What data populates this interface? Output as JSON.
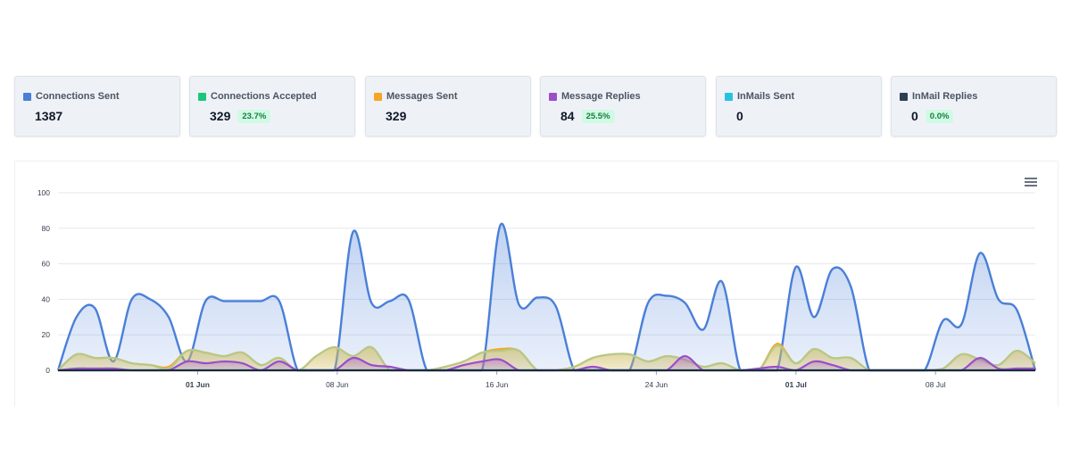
{
  "stats": [
    {
      "label": "Connections Sent",
      "value": "1387",
      "pct": null,
      "color": "#4a7fd8"
    },
    {
      "label": "Connections Accepted",
      "value": "329",
      "pct": "23.7%",
      "color": "#19c77b"
    },
    {
      "label": "Messages Sent",
      "value": "329",
      "pct": null,
      "color": "#f5a623"
    },
    {
      "label": "Message Replies",
      "value": "84",
      "pct": "25.5%",
      "color": "#9b4dca"
    },
    {
      "label": "InMails Sent",
      "value": "0",
      "pct": null,
      "color": "#27c2e0"
    },
    {
      "label": "InMail Replies",
      "value": "0",
      "pct": "0.0%",
      "color": "#2d3e55"
    }
  ],
  "chart_data": {
    "type": "area",
    "title": "",
    "xlabel": "",
    "ylabel": "",
    "ylim": [
      0,
      100
    ],
    "yticks": [
      0,
      20,
      40,
      60,
      80,
      100
    ],
    "x_start": "2024-05-25",
    "x_end": "2024-07-13",
    "xticks": [
      {
        "label": "01 Jun",
        "date": "2024-06-01",
        "bold": true
      },
      {
        "label": "08 Jun",
        "date": "2024-06-08",
        "bold": false
      },
      {
        "label": "16 Jun",
        "date": "2024-06-16",
        "bold": false
      },
      {
        "label": "24 Jun",
        "date": "2024-06-24",
        "bold": false
      },
      {
        "label": "01 Jul",
        "date": "2024-07-01",
        "bold": true
      },
      {
        "label": "08 Jul",
        "date": "2024-07-08",
        "bold": false
      }
    ],
    "series": [
      {
        "name": "Connections Sent",
        "color": "#4a7fd8",
        "fill": "#4a7fd8",
        "line_color": "#4a7fd8",
        "values": [
          0,
          30,
          35,
          5,
          40,
          40,
          30,
          5,
          39,
          39,
          39,
          39,
          39,
          0,
          0,
          0,
          78,
          38,
          39,
          40,
          0,
          0,
          0,
          0,
          82,
          37,
          41,
          36,
          0,
          0,
          0,
          0,
          38,
          42,
          38,
          23,
          50,
          0,
          0,
          0,
          58,
          30,
          57,
          47,
          0,
          0,
          0,
          0,
          28,
          26,
          66,
          40,
          34,
          0
        ]
      },
      {
        "name": "Connections Accepted",
        "color": "#19c77b",
        "fill": "#b5c98a",
        "line_color": "#b5c98a",
        "values": [
          0,
          9,
          7,
          7,
          4,
          3,
          1,
          11,
          10,
          8,
          10,
          3,
          7,
          0,
          8,
          13,
          8,
          13,
          0,
          0,
          0,
          2,
          5,
          10,
          11,
          11,
          0,
          0,
          2,
          7,
          9,
          9,
          5,
          8,
          6,
          2,
          4,
          0,
          0,
          14,
          4,
          12,
          7,
          7,
          0,
          0,
          0,
          0,
          1,
          9,
          6,
          3,
          11,
          4
        ]
      },
      {
        "name": "Messages Sent",
        "color": "#f5a623",
        "fill": "#f5a623",
        "line_color": "#f5a623",
        "values": [
          0,
          9,
          7,
          7,
          4,
          3,
          2,
          11,
          10,
          8,
          10,
          3,
          7,
          0,
          8,
          13,
          8,
          13,
          0,
          0,
          0,
          2,
          5,
          10,
          12,
          11,
          0,
          0,
          2,
          7,
          9,
          9,
          5,
          8,
          6,
          2,
          4,
          0,
          0,
          15,
          4,
          12,
          7,
          7,
          0,
          0,
          0,
          0,
          1,
          9,
          6,
          3,
          11,
          4
        ]
      },
      {
        "name": "Message Replies",
        "color": "#9b4dca",
        "fill": "#9b4dca",
        "line_color": "#9b4dca",
        "values": [
          0,
          1,
          1,
          1,
          0,
          0,
          0,
          5,
          4,
          5,
          4,
          0,
          5,
          0,
          0,
          0,
          7,
          3,
          2,
          0,
          0,
          0,
          3,
          5,
          6,
          0,
          0,
          0,
          0,
          2,
          0,
          0,
          0,
          0,
          8,
          0,
          0,
          0,
          1,
          2,
          0,
          5,
          3,
          0,
          0,
          0,
          0,
          0,
          0,
          0,
          7,
          1,
          1,
          1
        ]
      },
      {
        "name": "InMails Sent",
        "color": "#27c2e0",
        "fill": "#27c2e0",
        "line_color": "#27c2e0",
        "values": [
          0,
          0,
          0,
          0,
          0,
          0,
          0,
          0,
          0,
          0,
          0,
          0,
          0,
          0,
          0,
          0,
          0,
          0,
          0,
          0,
          0,
          0,
          0,
          0,
          0,
          0,
          0,
          0,
          0,
          0,
          0,
          0,
          0,
          0,
          0,
          0,
          0,
          0,
          0,
          0,
          0,
          0,
          0,
          0,
          0,
          0,
          0,
          0,
          0,
          0,
          0,
          0,
          0,
          0
        ]
      },
      {
        "name": "InMail Replies",
        "color": "#2d3e55",
        "fill": "#2d3e55",
        "line_color": "#2d3e55",
        "values": [
          0,
          0,
          0,
          0,
          0,
          0,
          0,
          0,
          0,
          0,
          0,
          0,
          0,
          0,
          0,
          0,
          0,
          0,
          0,
          0,
          0,
          0,
          0,
          0,
          0,
          0,
          0,
          0,
          0,
          0,
          0,
          0,
          0,
          0,
          0,
          0,
          0,
          0,
          0,
          0,
          0,
          0,
          0,
          0,
          0,
          0,
          0,
          0,
          0,
          0,
          0,
          0,
          0,
          0
        ]
      }
    ],
    "legend": "none"
  }
}
